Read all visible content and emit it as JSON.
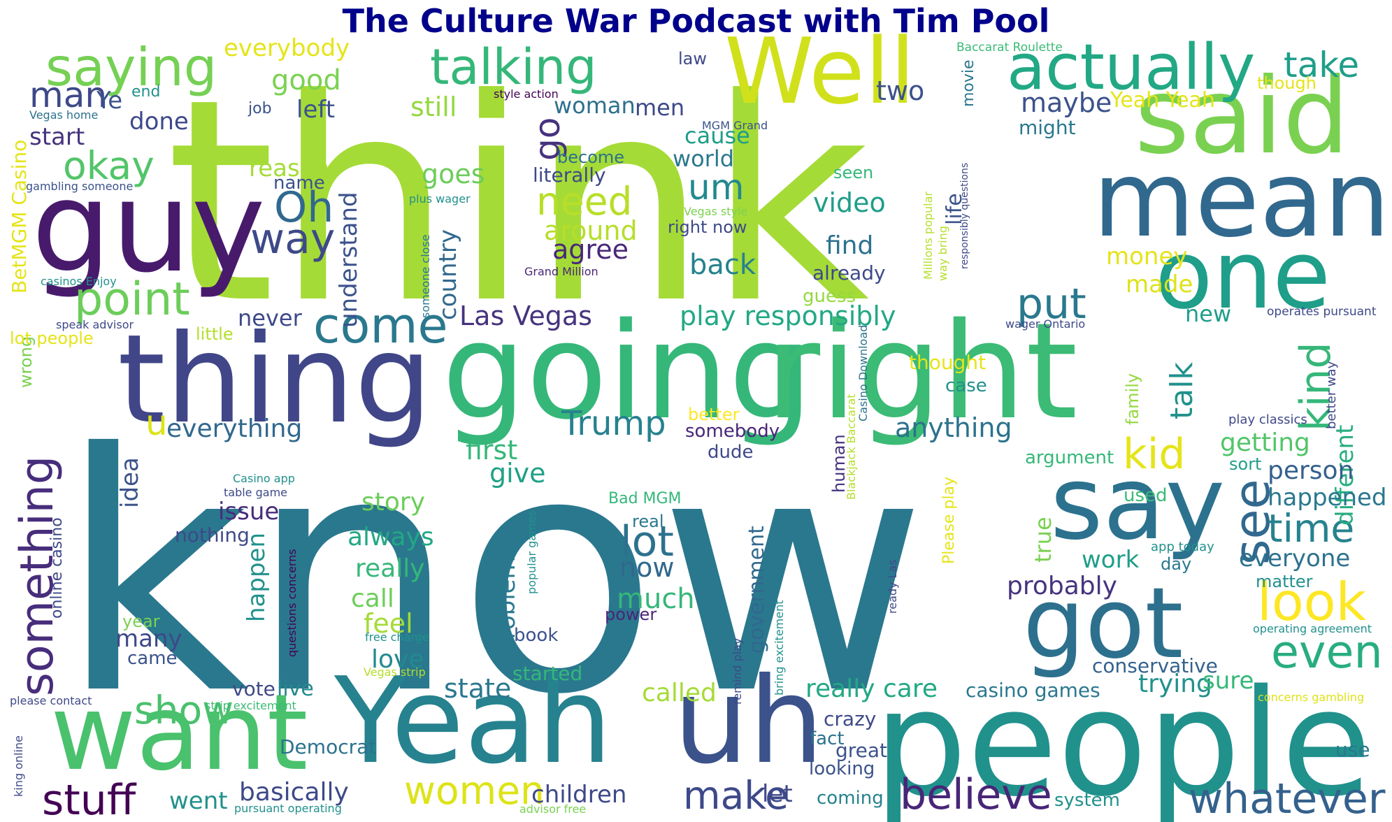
{
  "title": "The Culture War Podcast with Tim Pool",
  "colors": {
    "title": "#00008b",
    "background": "#ffffff"
  },
  "words": [
    {
      "text": "think",
      "color": "#a5db36"
    },
    {
      "text": "know",
      "color": "#2a788e"
    },
    {
      "text": "going",
      "color": "#35b779"
    },
    {
      "text": "right",
      "color": "#3bbb75"
    },
    {
      "text": "people",
      "color": "#21918c"
    },
    {
      "text": "Yeah",
      "color": "#26828e"
    },
    {
      "text": "uh",
      "color": "#3b528b"
    },
    {
      "text": "want",
      "color": "#4ac16d"
    },
    {
      "text": "thing",
      "color": "#404688"
    },
    {
      "text": "guy",
      "color": "#481a6c"
    },
    {
      "text": "mean",
      "color": "#31688e"
    },
    {
      "text": "said",
      "color": "#7ad151"
    },
    {
      "text": "Well",
      "color": "#d0e11c"
    },
    {
      "text": "one",
      "color": "#1f9e89"
    },
    {
      "text": "say",
      "color": "#2c728e"
    },
    {
      "text": "got",
      "color": "#2d708e"
    },
    {
      "text": "actually",
      "color": "#22a884"
    },
    {
      "text": "saying",
      "color": "#75d054"
    },
    {
      "text": "talking",
      "color": "#35b779"
    },
    {
      "text": "something",
      "color": "#472d7b"
    },
    {
      "text": "point",
      "color": "#6ccd5a"
    },
    {
      "text": "come",
      "color": "#2a788e"
    },
    {
      "text": "way",
      "color": "#3e4989"
    },
    {
      "text": "Oh",
      "color": "#31688e"
    },
    {
      "text": "man",
      "color": "#3e4989"
    },
    {
      "text": "okay",
      "color": "#52c569"
    },
    {
      "text": "take",
      "color": "#1f9e89"
    },
    {
      "text": "look",
      "color": "#fde725"
    },
    {
      "text": "see",
      "color": "#31688e"
    },
    {
      "text": "kind",
      "color": "#35b779"
    },
    {
      "text": "put",
      "color": "#2a788e"
    },
    {
      "text": "kid",
      "color": "#e5e419"
    },
    {
      "text": "even",
      "color": "#27ad81"
    },
    {
      "text": "time",
      "color": "#26828e"
    },
    {
      "text": "whatever",
      "color": "#34618d"
    },
    {
      "text": "believe",
      "color": "#482677"
    },
    {
      "text": "make",
      "color": "#3e4989"
    },
    {
      "text": "stuff",
      "color": "#440154"
    },
    {
      "text": "women",
      "color": "#dde318"
    },
    {
      "text": "show",
      "color": "#4ac16d"
    },
    {
      "text": "lot",
      "color": "#2c728e"
    },
    {
      "text": "Trump",
      "color": "#26828e"
    },
    {
      "text": "need",
      "color": "#b8de29"
    },
    {
      "text": "um",
      "color": "#23898e"
    },
    {
      "text": "go",
      "color": "#46337e"
    },
    {
      "text": "good",
      "color": "#7ad151"
    },
    {
      "text": "everybody",
      "color": "#e5e419"
    },
    {
      "text": "left",
      "color": "#3b528b"
    },
    {
      "text": "done",
      "color": "#3e4989"
    },
    {
      "text": "start",
      "color": "#46337e"
    },
    {
      "text": "still",
      "color": "#95d840"
    },
    {
      "text": "woman",
      "color": "#2d708e"
    },
    {
      "text": "men",
      "color": "#3e4989"
    },
    {
      "text": "maybe",
      "color": "#3b528b"
    },
    {
      "text": "Yeah Yeah",
      "color": "#e5e419"
    },
    {
      "text": "two",
      "color": "#3b528b"
    },
    {
      "text": "might",
      "color": "#2a788e"
    },
    {
      "text": "cause",
      "color": "#1f9e89"
    },
    {
      "text": "world",
      "color": "#2a788e"
    },
    {
      "text": "goes",
      "color": "#6ccd5a"
    },
    {
      "text": "literally",
      "color": "#3e4989"
    },
    {
      "text": "become",
      "color": "#2c728e"
    },
    {
      "text": "reason",
      "color": "#a5db36"
    },
    {
      "text": "name",
      "color": "#3b528b"
    },
    {
      "text": "around",
      "color": "#b5de2b"
    },
    {
      "text": "agree",
      "color": "#482878"
    },
    {
      "text": "video",
      "color": "#1f9e89"
    },
    {
      "text": "find",
      "color": "#2c728e"
    },
    {
      "text": "already",
      "color": "#3e4989"
    },
    {
      "text": "guess",
      "color": "#95d840"
    },
    {
      "text": "back",
      "color": "#26828e"
    },
    {
      "text": "money",
      "color": "#e5e419"
    },
    {
      "text": "made",
      "color": "#dde318"
    },
    {
      "text": "life",
      "color": "#3b528b"
    },
    {
      "text": "country",
      "color": "#31688e"
    },
    {
      "text": "understand",
      "color": "#3b528b"
    },
    {
      "text": "Las Vegas",
      "color": "#46337e"
    },
    {
      "text": "play responsibly",
      "color": "#22a884"
    },
    {
      "text": "new",
      "color": "#1f9e89"
    },
    {
      "text": "never",
      "color": "#3e4989"
    },
    {
      "text": "everything",
      "color": "#31688e"
    },
    {
      "text": "anything",
      "color": "#2c728e"
    },
    {
      "text": "thought",
      "color": "#e5e419"
    },
    {
      "text": "case",
      "color": "#21918c"
    },
    {
      "text": "different",
      "color": "#27ad81"
    },
    {
      "text": "talk",
      "color": "#21918c"
    },
    {
      "text": "getting",
      "color": "#52c569"
    },
    {
      "text": "person",
      "color": "#34618d"
    },
    {
      "text": "happened",
      "color": "#2a788e"
    },
    {
      "text": "first",
      "color": "#35b779"
    },
    {
      "text": "give",
      "color": "#1fa187"
    },
    {
      "text": "somebody",
      "color": "#482677"
    },
    {
      "text": "dude",
      "color": "#3e4989"
    },
    {
      "text": "better",
      "color": "#fde725"
    },
    {
      "text": "idea",
      "color": "#3b528b"
    },
    {
      "text": "issue",
      "color": "#472d7b"
    },
    {
      "text": "story",
      "color": "#6ccd5a"
    },
    {
      "text": "always",
      "color": "#22a884"
    },
    {
      "text": "really",
      "color": "#35b779"
    },
    {
      "text": "call",
      "color": "#6ccd5a"
    },
    {
      "text": "feel",
      "color": "#a5db36"
    },
    {
      "text": "love",
      "color": "#23898e"
    },
    {
      "text": "many",
      "color": "#3e4989"
    },
    {
      "text": "happen",
      "color": "#21918c"
    },
    {
      "text": "nothing",
      "color": "#3e4989"
    },
    {
      "text": "problem",
      "color": "#2a788e"
    },
    {
      "text": "now",
      "color": "#31688e"
    },
    {
      "text": "much",
      "color": "#35b779"
    },
    {
      "text": "power",
      "color": "#482677"
    },
    {
      "text": "government",
      "color": "#31688e"
    },
    {
      "text": "probably",
      "color": "#46337e"
    },
    {
      "text": "work",
      "color": "#1f9e89"
    },
    {
      "text": "everyone",
      "color": "#2c728e"
    },
    {
      "text": "day",
      "color": "#2a788e"
    },
    {
      "text": "matter",
      "color": "#21918c"
    },
    {
      "text": "true",
      "color": "#7ad151"
    },
    {
      "text": "used",
      "color": "#3bbb75"
    },
    {
      "text": "argument",
      "color": "#35b779"
    },
    {
      "text": "sort",
      "color": "#1f9e89"
    },
    {
      "text": "state",
      "color": "#2a788e"
    },
    {
      "text": "called",
      "color": "#a5db36"
    },
    {
      "text": "really care",
      "color": "#22a884"
    },
    {
      "text": "casino games",
      "color": "#2a788e"
    },
    {
      "text": "trying",
      "color": "#21918c"
    },
    {
      "text": "sure",
      "color": "#35b779"
    },
    {
      "text": "conservative",
      "color": "#34618d"
    },
    {
      "text": "use",
      "color": "#2a788e"
    },
    {
      "text": "crazy",
      "color": "#3e4989"
    },
    {
      "text": "fact",
      "color": "#2c728e"
    },
    {
      "text": "great",
      "color": "#3b528b"
    },
    {
      "text": "looking",
      "color": "#3b528b"
    },
    {
      "text": "coming",
      "color": "#26828e"
    },
    {
      "text": "system",
      "color": "#21918c"
    },
    {
      "text": "let",
      "color": "#3e4989"
    },
    {
      "text": "children",
      "color": "#3e4989"
    },
    {
      "text": "basically",
      "color": "#3e4989"
    },
    {
      "text": "went",
      "color": "#21918c"
    },
    {
      "text": "vote",
      "color": "#3e4989"
    },
    {
      "text": "live",
      "color": "#23898e"
    },
    {
      "text": "Democrat",
      "color": "#2c728e"
    },
    {
      "text": "started",
      "color": "#35b779"
    },
    {
      "text": "book",
      "color": "#3b528b"
    },
    {
      "text": "came",
      "color": "#3b528b"
    },
    {
      "text": "year",
      "color": "#7ad151"
    },
    {
      "text": "real",
      "color": "#2a788e"
    },
    {
      "text": "human",
      "color": "#46337e"
    },
    {
      "text": "family",
      "color": "#95d840"
    },
    {
      "text": "wrong",
      "color": "#7ad151"
    },
    {
      "text": "little",
      "color": "#b5de2b"
    },
    {
      "text": "lot people",
      "color": "#e5e419"
    },
    {
      "text": "end",
      "color": "#21918c"
    },
    {
      "text": "job",
      "color": "#3b528b"
    },
    {
      "text": "law",
      "color": "#3e4989"
    },
    {
      "text": "movie",
      "color": "#2a788e"
    },
    {
      "text": "though",
      "color": "#e5e419"
    },
    {
      "text": "right now",
      "color": "#3e4989"
    },
    {
      "text": "seen",
      "color": "#35b779"
    },
    {
      "text": "Ye",
      "color": "#3b528b"
    },
    {
      "text": "u",
      "color": "#dde318"
    },
    {
      "text": "BetMGM Casino",
      "color": "#e5e419"
    },
    {
      "text": "Vegas home",
      "color": "#2c728e"
    },
    {
      "text": "gambling someone",
      "color": "#3b528b"
    },
    {
      "text": "casinos Enjoy",
      "color": "#21918c"
    },
    {
      "text": "speak advisor",
      "color": "#3e4989"
    },
    {
      "text": "style action",
      "color": "#440154"
    },
    {
      "text": "MGM Grand",
      "color": "#3b528b"
    },
    {
      "text": "plus wager",
      "color": "#21918c"
    },
    {
      "text": "Vegas style",
      "color": "#7ad151"
    },
    {
      "text": "Grand Million",
      "color": "#482677"
    },
    {
      "text": "someone close",
      "color": "#2a788e"
    },
    {
      "text": "Baccarat Roulette",
      "color": "#3bbb75"
    },
    {
      "text": "Millions popular",
      "color": "#b5de2b"
    },
    {
      "text": "way bring",
      "color": "#b5de2b"
    },
    {
      "text": "responsibly questions",
      "color": "#3e4989"
    },
    {
      "text": "wager Ontario",
      "color": "#3e4989"
    },
    {
      "text": "operates pursuant",
      "color": "#3e4989"
    },
    {
      "text": "Casino Download",
      "color": "#2c728e"
    },
    {
      "text": "Blackjack Baccarat",
      "color": "#b5de2b"
    },
    {
      "text": "play classics",
      "color": "#3e4989"
    },
    {
      "text": "better way",
      "color": "#3e4989"
    },
    {
      "text": "Please play",
      "color": "#e5e419"
    },
    {
      "text": "app today",
      "color": "#21918c"
    },
    {
      "text": "ready Las",
      "color": "#3e4989"
    },
    {
      "text": "operating agreement",
      "color": "#21918c"
    },
    {
      "text": "concerns gambling",
      "color": "#dde318"
    },
    {
      "text": "Casino app",
      "color": "#21918c"
    },
    {
      "text": "table game",
      "color": "#3e4989"
    },
    {
      "text": "online casino",
      "color": "#3e4989"
    },
    {
      "text": "questions concerns",
      "color": "#440154"
    },
    {
      "text": "popular games",
      "color": "#21918c"
    },
    {
      "text": "Bad MGM",
      "color": "#35b779"
    },
    {
      "text": "free charge",
      "color": "#21918c"
    },
    {
      "text": "Vegas strip",
      "color": "#b5de2b"
    },
    {
      "text": "strip excitement",
      "color": "#3bbb75"
    },
    {
      "text": "remind play",
      "color": "#3e4989"
    },
    {
      "text": "bring excitement",
      "color": "#21918c"
    },
    {
      "text": "please contact",
      "color": "#3e4989"
    },
    {
      "text": "king online",
      "color": "#3e4989"
    },
    {
      "text": "pursuant operating",
      "color": "#21918c"
    },
    {
      "text": "advisor free",
      "color": "#7ad151"
    }
  ]
}
